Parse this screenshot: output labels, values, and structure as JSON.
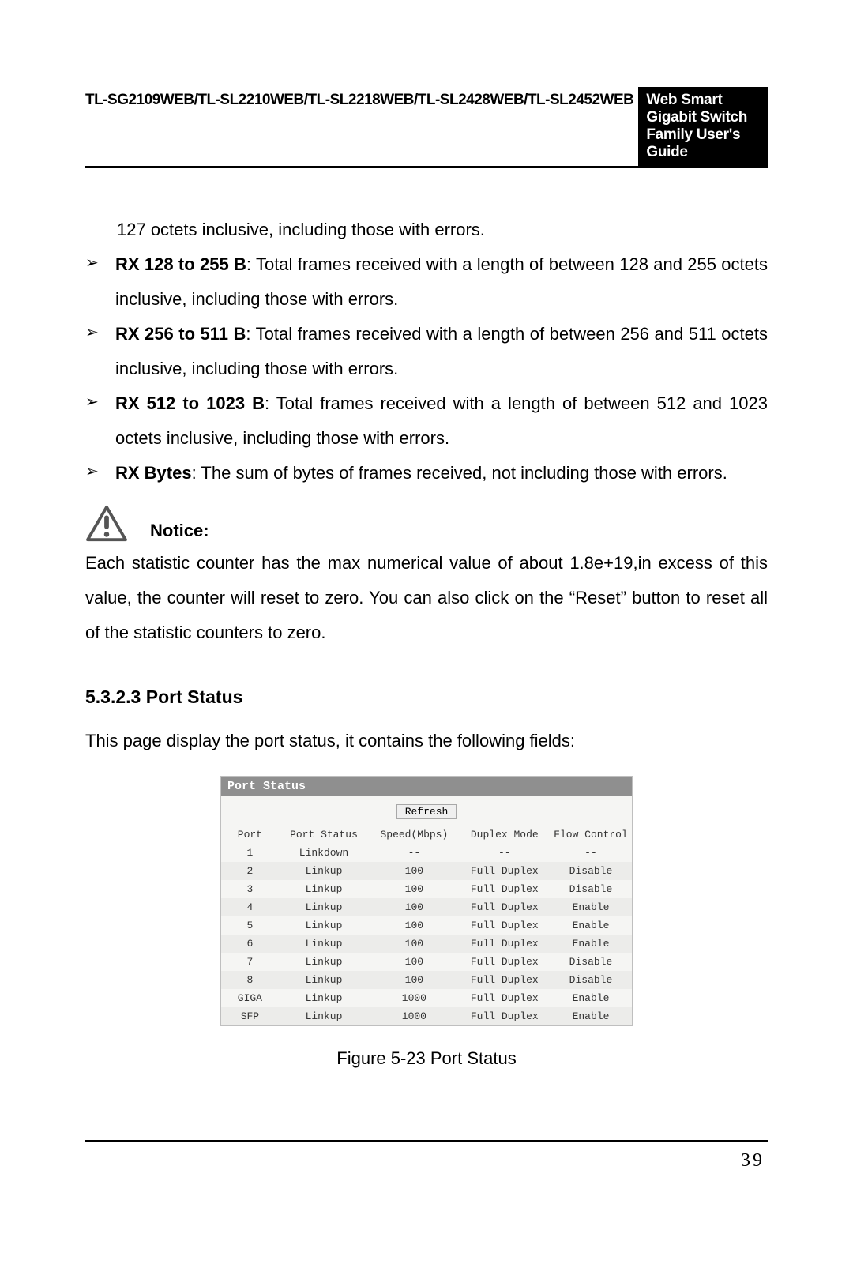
{
  "header": {
    "left": "TL-SG2109WEB/TL-SL2210WEB/TL-SL2218WEB/TL-SL2428WEB/TL-SL2452WEB",
    "right": "Web Smart Gigabit Switch Family User's Guide"
  },
  "intro_line": "127 octets inclusive, including those with errors.",
  "bullets": [
    {
      "term": "RX 128 to 255 B",
      "desc": ": Total frames received with a length of between 128 and 255 octets inclusive, including those with errors."
    },
    {
      "term": "RX 256 to 511 B",
      "desc": ": Total frames received with a length of between 256 and 511 octets inclusive, including those with errors."
    },
    {
      "term": "RX 512 to 1023 B",
      "desc": ": Total frames received with a length of between 512 and 1023 octets inclusive, including those with errors."
    },
    {
      "term": "RX Bytes",
      "desc": ": The sum of bytes of frames received, not including those with errors."
    }
  ],
  "notice": {
    "label": "Notice:",
    "text": "Each statistic counter has the max numerical value of about 1.8e+19,in excess of this value, the counter will reset to zero. You can also click on the “Reset” button to reset all of the statistic counters to zero."
  },
  "section": {
    "heading": "5.3.2.3  Port Status",
    "intro": "This page display the port status, it contains the following fields:"
  },
  "port_status_panel": {
    "title": "Port Status",
    "refresh_label": "Refresh",
    "columns": [
      "Port",
      "Port Status",
      "Speed(Mbps)",
      "Duplex Mode",
      "Flow Control"
    ],
    "rows": [
      [
        "1",
        "Linkdown",
        "--",
        "--",
        "--"
      ],
      [
        "2",
        "Linkup",
        "100",
        "Full Duplex",
        "Disable"
      ],
      [
        "3",
        "Linkup",
        "100",
        "Full Duplex",
        "Disable"
      ],
      [
        "4",
        "Linkup",
        "100",
        "Full Duplex",
        "Enable"
      ],
      [
        "5",
        "Linkup",
        "100",
        "Full Duplex",
        "Enable"
      ],
      [
        "6",
        "Linkup",
        "100",
        "Full Duplex",
        "Enable"
      ],
      [
        "7",
        "Linkup",
        "100",
        "Full Duplex",
        "Disable"
      ],
      [
        "8",
        "Linkup",
        "100",
        "Full Duplex",
        "Disable"
      ],
      [
        "GIGA",
        "Linkup",
        "1000",
        "Full Duplex",
        "Enable"
      ],
      [
        "SFP",
        "Linkup",
        "1000",
        "Full Duplex",
        "Enable"
      ]
    ],
    "colors": {
      "panel_border": "#bfbfbf",
      "panel_bg": "#f5f5f3",
      "title_bg": "#8f8f8f",
      "title_fg": "#ffffff",
      "row_alt_bg": "#ececea",
      "text": "#333333"
    },
    "column_widths_pct": [
      14,
      22,
      22,
      22,
      20
    ]
  },
  "figure_caption": "Figure 5-23  Port Status",
  "page_number": "39"
}
